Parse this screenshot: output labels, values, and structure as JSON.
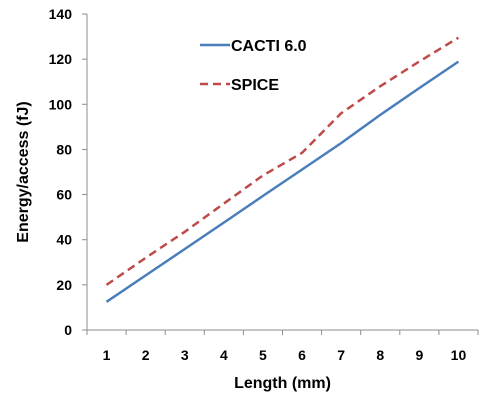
{
  "chart_data": {
    "type": "line",
    "title": "",
    "xlabel": "Length (mm)",
    "ylabel": "Energy/access (fJ)",
    "categories": [
      1,
      2,
      3,
      4,
      5,
      6,
      7,
      8,
      9,
      10
    ],
    "ylim": [
      0,
      140
    ],
    "yticks": [
      0,
      20,
      40,
      60,
      80,
      100,
      120,
      140
    ],
    "grid": false,
    "legend_placement": "top-center",
    "series": [
      {
        "name": "CACTI 6.0",
        "style": "solid",
        "color": "#4a7ebb",
        "values": [
          12.5,
          24.2,
          35.9,
          47.6,
          59.4,
          71.1,
          82.8,
          95.3,
          107.2,
          118.9
        ]
      },
      {
        "name": "SPICE",
        "style": "dashed",
        "color": "#be4b48",
        "values": [
          20,
          32,
          43.5,
          56,
          68.5,
          78.5,
          96,
          108,
          119,
          129.5
        ]
      }
    ]
  }
}
